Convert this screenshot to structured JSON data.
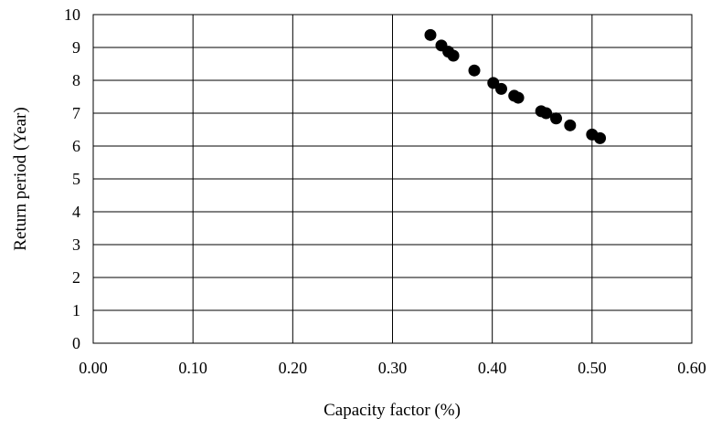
{
  "chart_data": {
    "type": "scatter",
    "title": "",
    "xlabel": "Capacity factor (%)",
    "ylabel": "Return period (Year)",
    "xlim": [
      0,
      0.6
    ],
    "ylim": [
      0,
      10
    ],
    "x_ticks": [
      0,
      0.1,
      0.2,
      0.3,
      0.4,
      0.5,
      0.6
    ],
    "x_tick_labels": [
      "0.00",
      "0.10",
      "0.20",
      "0.30",
      "0.40",
      "0.50",
      "0.60"
    ],
    "y_ticks": [
      0,
      1,
      2,
      3,
      4,
      5,
      6,
      7,
      8,
      9,
      10
    ],
    "y_tick_labels": [
      "0",
      "1",
      "2",
      "3",
      "4",
      "5",
      "6",
      "7",
      "8",
      "9",
      "10"
    ],
    "grid": true,
    "legend": "none",
    "marker_color": "#000000",
    "series": [
      {
        "points": [
          {
            "x": 0.338,
            "y": 9.38
          },
          {
            "x": 0.349,
            "y": 9.06
          },
          {
            "x": 0.356,
            "y": 8.87
          },
          {
            "x": 0.361,
            "y": 8.75
          },
          {
            "x": 0.382,
            "y": 8.3
          },
          {
            "x": 0.401,
            "y": 7.92
          },
          {
            "x": 0.409,
            "y": 7.74
          },
          {
            "x": 0.422,
            "y": 7.53
          },
          {
            "x": 0.426,
            "y": 7.47
          },
          {
            "x": 0.449,
            "y": 7.06
          },
          {
            "x": 0.454,
            "y": 7.0
          },
          {
            "x": 0.464,
            "y": 6.84
          },
          {
            "x": 0.478,
            "y": 6.63
          },
          {
            "x": 0.5,
            "y": 6.35
          },
          {
            "x": 0.508,
            "y": 6.24
          }
        ]
      }
    ]
  }
}
